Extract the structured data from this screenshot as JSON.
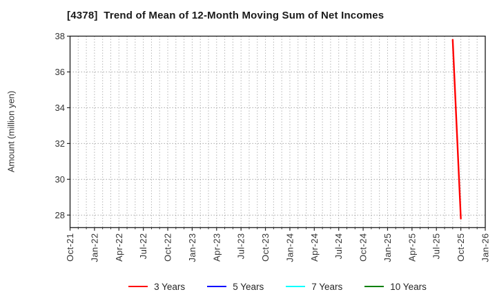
{
  "chart_data": {
    "type": "line",
    "title": "[4378]  Trend of Mean of 12-Month Moving Sum of Net Incomes",
    "ylabel": "Amount (million yen)",
    "x_tick_labels": [
      "Oct-21",
      "Jan-22",
      "Apr-22",
      "Jul-22",
      "Oct-22",
      "Jan-23",
      "Apr-23",
      "Jul-23",
      "Oct-23",
      "Jan-24",
      "Apr-24",
      "Jul-24",
      "Oct-24",
      "Jan-25",
      "Apr-25",
      "Jul-25",
      "Oct-25",
      "Jan-26"
    ],
    "x_range_months": [
      "Oct-21",
      "Jan-26"
    ],
    "x_tick_step_months": 3,
    "minor_grid_step_months": 1,
    "y_ticks": [
      28,
      30,
      32,
      34,
      36,
      38
    ],
    "ylim": [
      27.3,
      38
    ],
    "grid": "dotted",
    "legend_position": "bottom",
    "series": [
      {
        "name": "3 Years",
        "color": "#ff0000",
        "points": [
          {
            "x": "Sep-25",
            "y": 37.8
          },
          {
            "x": "Oct-25",
            "y": 27.8
          }
        ]
      },
      {
        "name": "5 Years",
        "color": "#0000ff",
        "points": []
      },
      {
        "name": "7 Years",
        "color": "#00ffff",
        "points": []
      },
      {
        "name": "10 Years",
        "color": "#008000",
        "points": []
      }
    ]
  },
  "style_colors": {
    "frame": "#262626",
    "grid_vertical": "#b4b4b4",
    "grid_horizontal": "#a8a8a8",
    "tick_mark": "#262626",
    "title_text": "#1a1a1a",
    "tick_text": "#333333"
  }
}
